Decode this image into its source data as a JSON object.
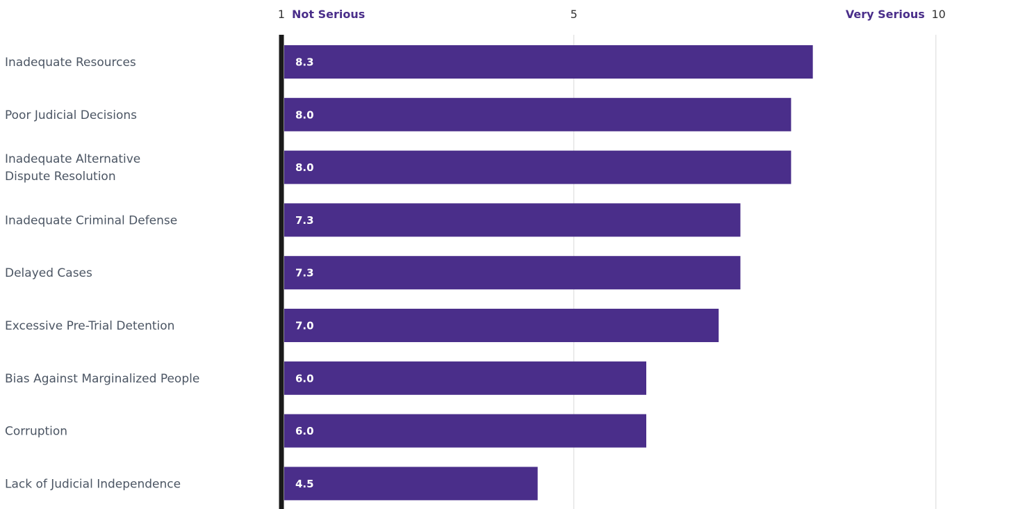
{
  "chart_data": {
    "type": "bar",
    "orientation": "horizontal",
    "categories": [
      "Inadequate Resources",
      "Poor Judicial Decisions",
      "Inadequate Alternative Dispute Resolution",
      "Inadequate Criminal Defense",
      "Delayed Cases",
      "Excessive Pre-Trial Detention",
      "Bias Against Marginalized People",
      "Corruption",
      "Lack of Judicial Independence"
    ],
    "category_lines": [
      [
        "Inadequate Resources"
      ],
      [
        "Poor Judicial Decisions"
      ],
      [
        "Inadequate Alternative",
        "Dispute Resolution"
      ],
      [
        "Inadequate Criminal Defense"
      ],
      [
        "Delayed Cases"
      ],
      [
        "Excessive Pre-Trial Detention"
      ],
      [
        "Bias Against Marginalized People"
      ],
      [
        "Corruption"
      ],
      [
        "Lack of Judicial Independence"
      ]
    ],
    "values": [
      8.3,
      8.0,
      8.0,
      7.3,
      7.3,
      7.0,
      6.0,
      6.0,
      4.5
    ],
    "value_labels": [
      "8.3",
      "8.0",
      "8.0",
      "7.3",
      "7.3",
      "7.0",
      "6.0",
      "6.0",
      "4.5"
    ],
    "xlim": [
      1,
      10
    ],
    "x_ticks": [
      {
        "value": 1,
        "label": "1"
      },
      {
        "value": 5,
        "label": "5"
      },
      {
        "value": 10,
        "label": "10"
      }
    ],
    "scale_low_label": "Not Serious",
    "scale_high_label": "Very Serious",
    "gridlines": [
      5,
      10
    ],
    "grid": true,
    "legend": "none",
    "title": "",
    "xlabel": "",
    "ylabel": "",
    "colors": {
      "bar": "#4a2e8a",
      "value_text": "#ffffff",
      "scale_words": "#4a2e8a",
      "ticks": "#333333",
      "category_text": "#4b5563",
      "baseline": "#1a1a1a",
      "grid": "#d9d9d9"
    }
  }
}
